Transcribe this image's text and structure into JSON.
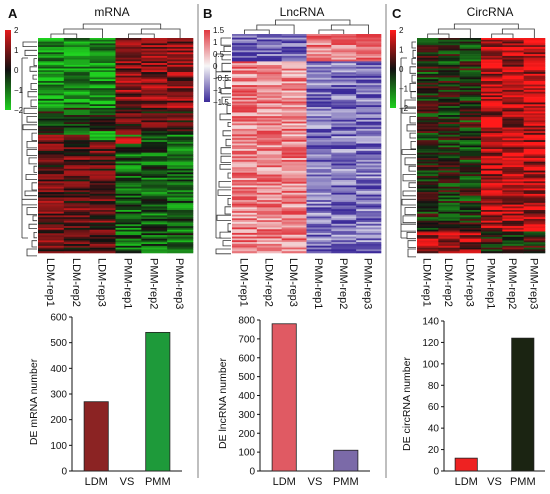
{
  "panels": [
    {
      "letter": "A",
      "title": "mRNA",
      "scale_ticks": [
        "2",
        "1",
        "0",
        "−1",
        "−2"
      ],
      "scale_range": [
        -2,
        2
      ],
      "scale_colors": [
        "#e41a1c",
        "#111111",
        "#1fd11f"
      ],
      "samples": [
        "LDM-rep1",
        "LDM-rep2",
        "LDM-rep3",
        "PMM-rep1",
        "PMM-rep2",
        "PMM-rep3"
      ]
    },
    {
      "letter": "B",
      "title": "LncRNA",
      "scale_ticks": [
        "1.5",
        "1",
        "0.5",
        "0",
        "−0.5",
        "−1",
        "−1.5"
      ],
      "scale_range": [
        -1.5,
        1.5
      ],
      "scale_colors": [
        "#e0373f",
        "#f7f7f7",
        "#3b2a99"
      ],
      "samples": [
        "LDM-rep1",
        "LDM-rep2",
        "LDM-rep3",
        "PMM-rep1",
        "PMM-rep2",
        "PMM-rep3"
      ]
    },
    {
      "letter": "C",
      "title": "CircRNA",
      "scale_ticks": [
        "2",
        "1",
        "0",
        "−1",
        "−2"
      ],
      "scale_range": [
        -2,
        2
      ],
      "scale_colors": [
        "#ff1a1a",
        "#111111",
        "#1fd11f"
      ],
      "samples": [
        "LDM-rep1",
        "LDM-rep2",
        "LDM-rep3",
        "PMM-rep1",
        "PMM-rep2",
        "PMM-rep3"
      ]
    }
  ],
  "chart_data": [
    {
      "type": "heatmap",
      "title": "mRNA",
      "columns": [
        "LDM-rep1",
        "LDM-rep2",
        "LDM-rep3",
        "PMM-rep1",
        "PMM-rep2",
        "PMM-rep3"
      ],
      "value_range": [
        -2,
        2
      ]
    },
    {
      "type": "heatmap",
      "title": "LncRNA",
      "columns": [
        "LDM-rep1",
        "LDM-rep2",
        "LDM-rep3",
        "PMM-rep1",
        "PMM-rep2",
        "PMM-rep3"
      ],
      "value_range": [
        -1.5,
        1.5
      ]
    },
    {
      "type": "heatmap",
      "title": "CircRNA",
      "columns": [
        "LDM-rep1",
        "LDM-rep2",
        "LDM-rep3",
        "PMM-rep1",
        "PMM-rep2",
        "PMM-rep3"
      ],
      "value_range": [
        -2,
        2
      ]
    },
    {
      "type": "bar",
      "categories": [
        "LDM",
        "PMM"
      ],
      "values": [
        270,
        540
      ],
      "between_label": "VS",
      "ylabel": "DE mRNA number",
      "ylim": [
        0,
        600
      ],
      "yticks": [
        "0",
        "100",
        "200",
        "300",
        "400",
        "500",
        "600"
      ],
      "colors": [
        "#8b2323",
        "#1e9a3a"
      ]
    },
    {
      "type": "bar",
      "categories": [
        "LDM",
        "PMM"
      ],
      "values": [
        780,
        110
      ],
      "between_label": "VS",
      "ylabel": "DE lncRNA number",
      "ylim": [
        0,
        800
      ],
      "yticks": [
        "0",
        "100",
        "200",
        "300",
        "400",
        "500",
        "600",
        "700",
        "800"
      ],
      "colors": [
        "#e05a63",
        "#7b6aa8"
      ]
    },
    {
      "type": "bar",
      "categories": [
        "LDM",
        "PMM"
      ],
      "values": [
        12,
        124
      ],
      "between_label": "VS",
      "ylabel": "DE circRNA number",
      "ylim": [
        0,
        140
      ],
      "yticks": [
        "0",
        "20",
        "40",
        "60",
        "80",
        "100",
        "120",
        "140"
      ],
      "colors": [
        "#ee2222",
        "#1b2412"
      ]
    }
  ]
}
